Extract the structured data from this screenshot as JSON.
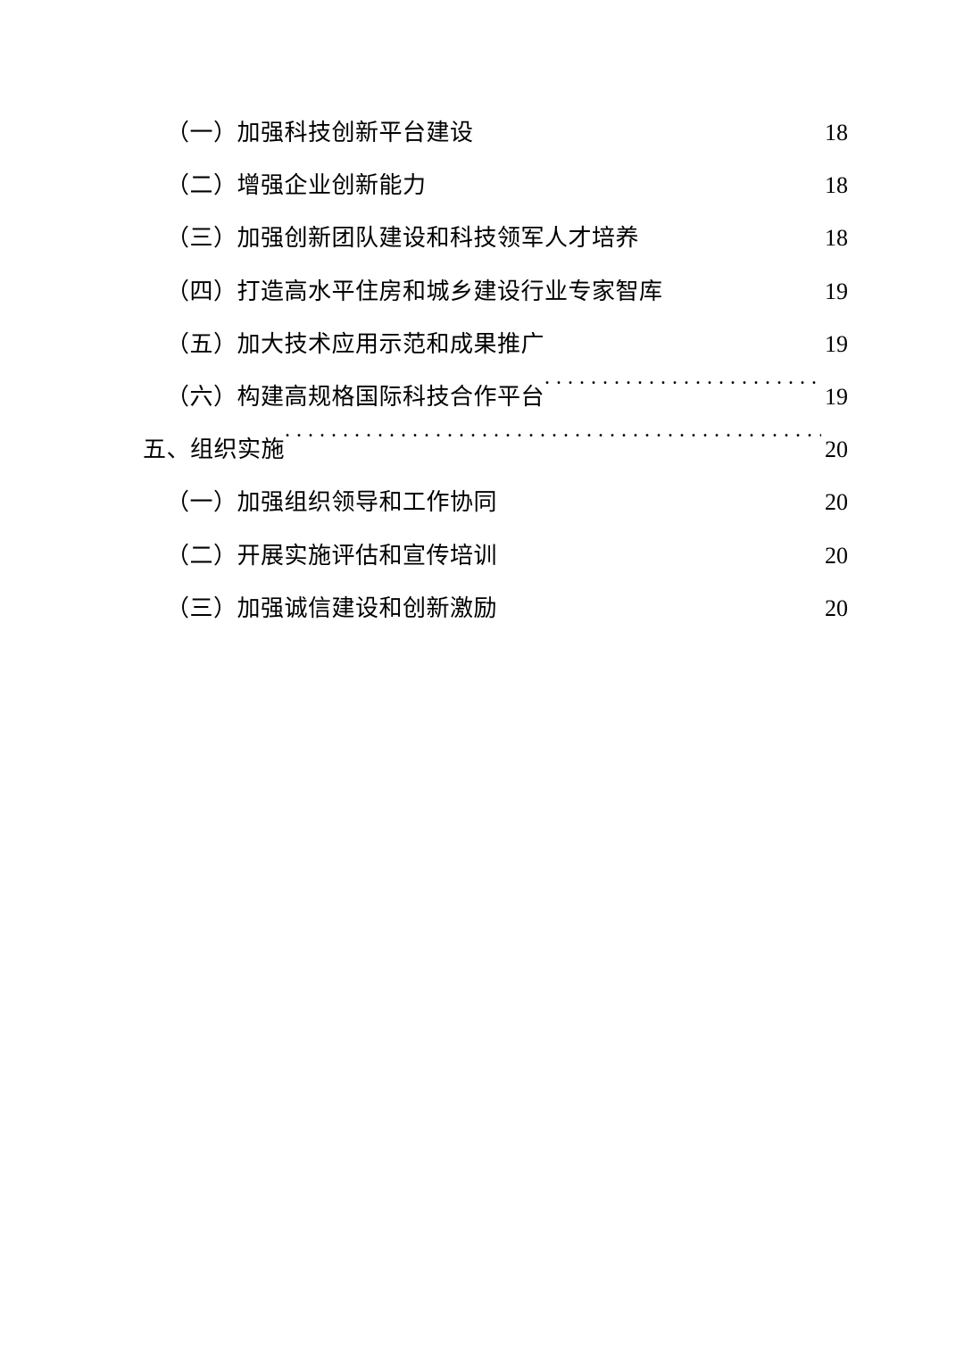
{
  "toc": {
    "entries": [
      {
        "level": "sub",
        "label": "（一）加强科技创新平台建设",
        "page": "18",
        "leader": "dots"
      },
      {
        "level": "sub",
        "label": "（二）增强企业创新能力",
        "page": "18",
        "leader": "dots"
      },
      {
        "level": "sub",
        "label": "（三）加强创新团队建设和科技领军人才培养",
        "page": "18",
        "leader": "dots"
      },
      {
        "level": "sub",
        "label": "（四）打造高水平住房和城乡建设行业专家智库",
        "page": "19",
        "leader": "dots"
      },
      {
        "level": "sub",
        "label": "（五）加大技术应用示范和成果推广",
        "page": "19",
        "leader": "dots"
      },
      {
        "level": "sub",
        "label": "（六）构建高规格国际科技合作平台",
        "page": "19",
        "leader": "bigdots"
      },
      {
        "level": "top",
        "label": "五、组织实施",
        "page": "20",
        "leader": "bigdots"
      },
      {
        "level": "sub",
        "label": "（一）加强组织领导和工作协同",
        "page": "20",
        "leader": "dots"
      },
      {
        "level": "sub",
        "label": "（二）开展实施评估和宣传培训",
        "page": "20",
        "leader": "dots"
      },
      {
        "level": "sub",
        "label": "（三）加强诚信建设和创新激励",
        "page": "20",
        "leader": "dots"
      }
    ]
  }
}
